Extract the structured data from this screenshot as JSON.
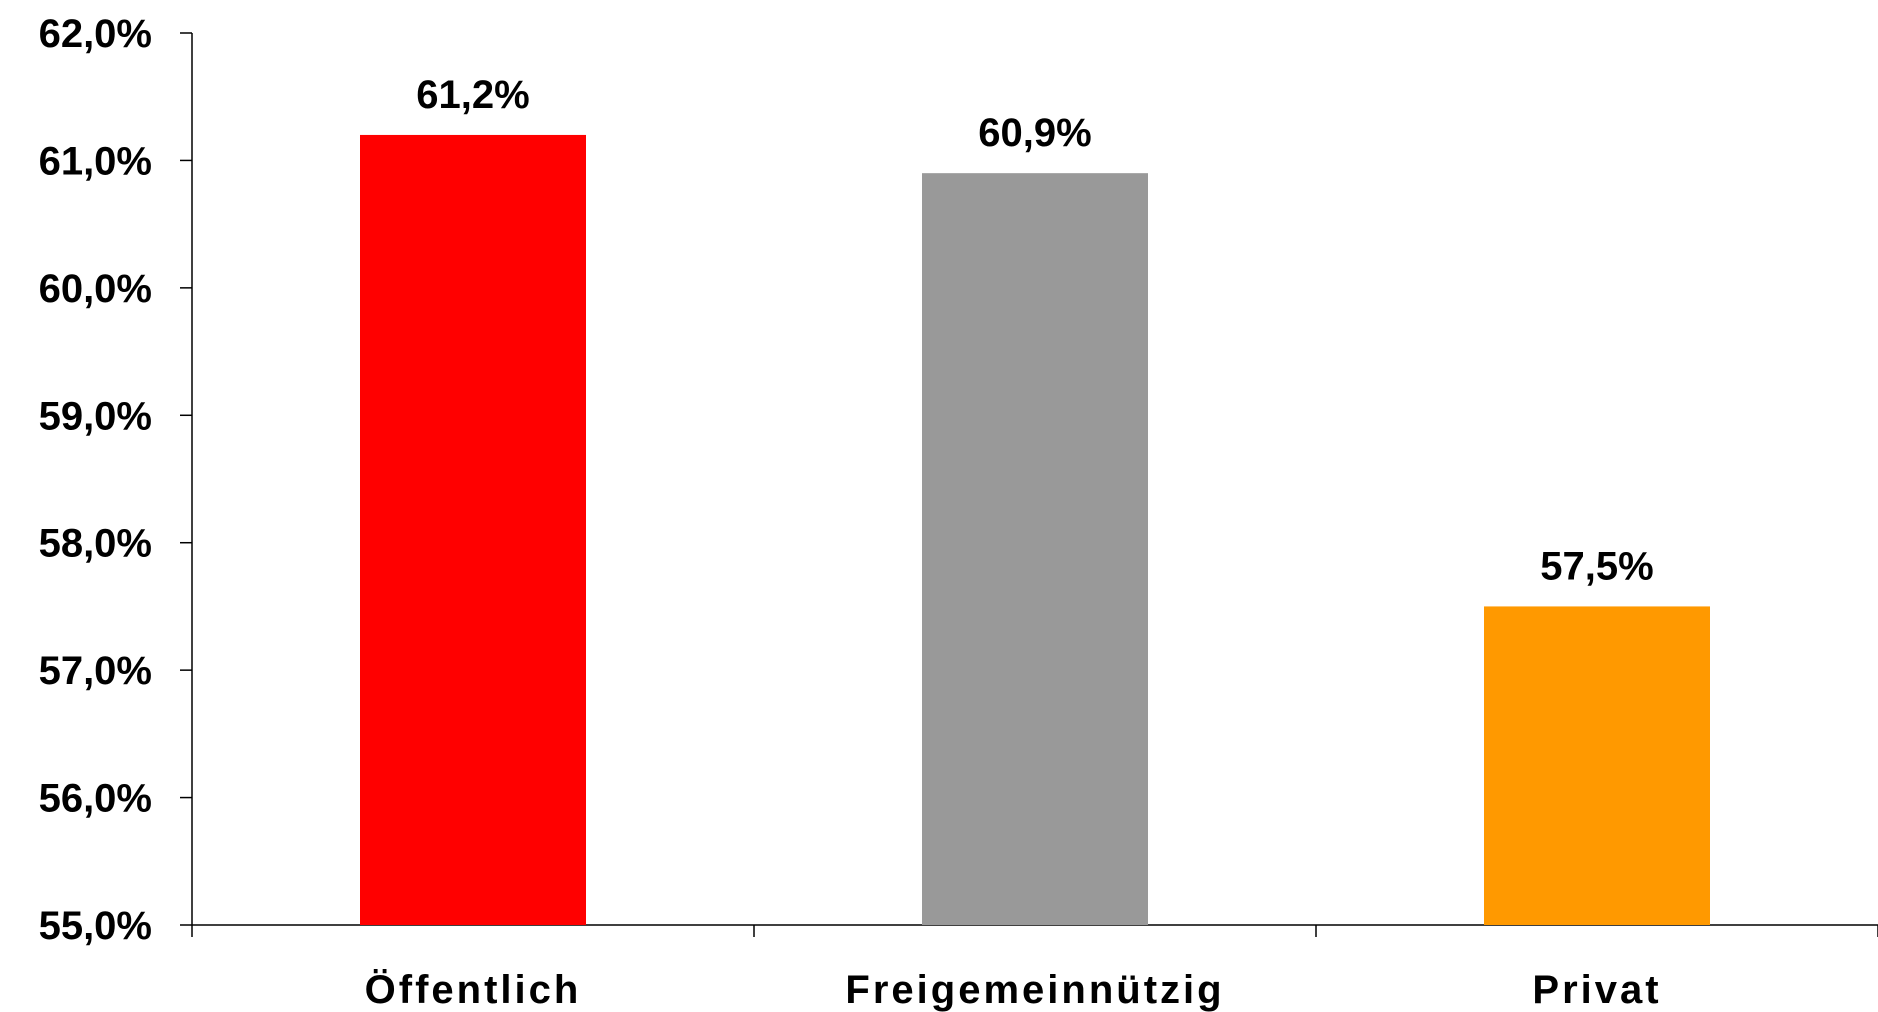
{
  "chart_data": {
    "type": "bar",
    "categories": [
      "Öffentlich",
      "Freigemeinnützig",
      "Privat"
    ],
    "values": [
      61.2,
      60.9,
      57.5
    ],
    "value_labels": [
      "61,2%",
      "60,9%",
      "57,5%"
    ],
    "colors": [
      "#ff0000",
      "#999999",
      "#ff9900"
    ],
    "ylim": [
      55.0,
      62.0
    ],
    "yticks": [
      55.0,
      56.0,
      57.0,
      58.0,
      59.0,
      60.0,
      61.0,
      62.0
    ],
    "ytick_labels": [
      "55,0%",
      "56,0%",
      "57,0%",
      "58,0%",
      "59,0%",
      "60,0%",
      "61,0%",
      "62,0%"
    ],
    "grid": false,
    "legend": "none"
  }
}
